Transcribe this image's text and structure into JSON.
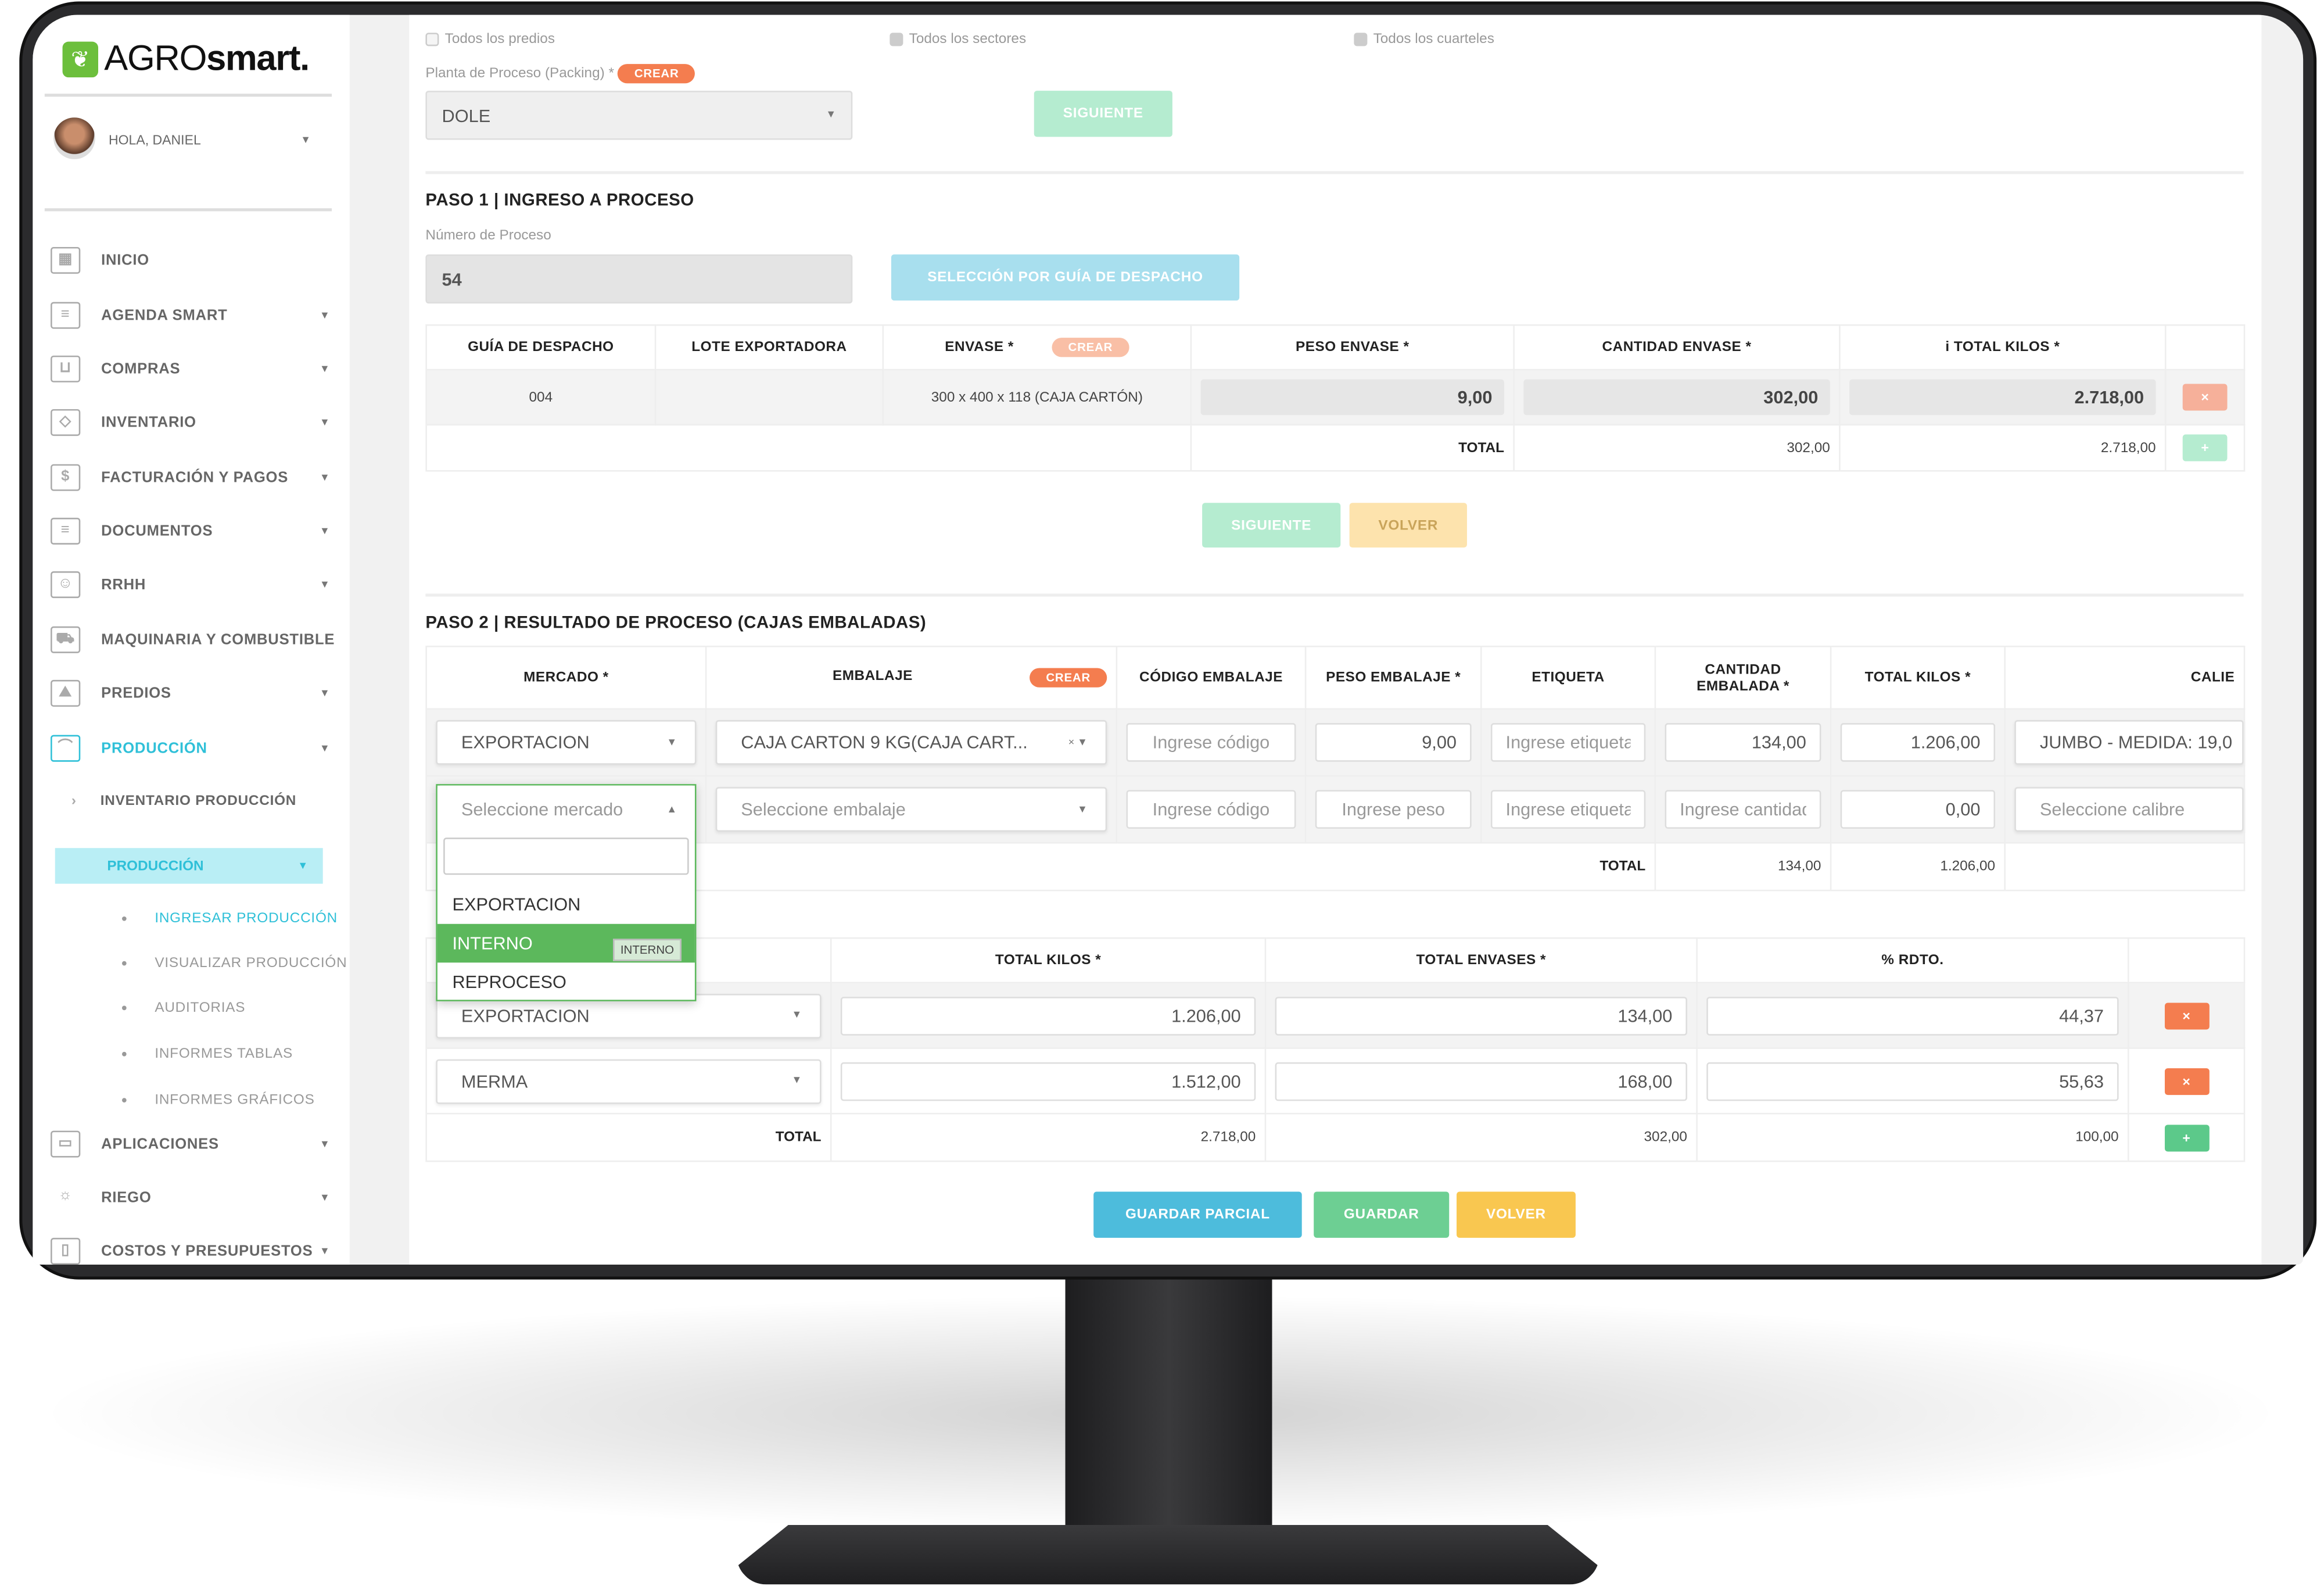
{
  "app": {
    "brand_light": "AGRO",
    "brand_bold": "smart.",
    "user_greeting": "HOLA, DANIEL"
  },
  "sidebar": {
    "items": [
      {
        "label": "INICIO",
        "icon": "dashboard-icon"
      },
      {
        "label": "AGENDA SMART",
        "icon": "agenda-icon"
      },
      {
        "label": "COMPRAS",
        "icon": "cart-icon"
      },
      {
        "label": "INVENTARIO",
        "icon": "tag-icon"
      },
      {
        "label": "FACTURACIÓN Y PAGOS",
        "icon": "billing-icon"
      },
      {
        "label": "DOCUMENTOS",
        "icon": "document-icon"
      },
      {
        "label": "RRHH",
        "icon": "id-card-icon"
      },
      {
        "label": "MAQUINARIA Y COMBUSTIBLE",
        "icon": "truck-icon"
      },
      {
        "label": "PREDIOS",
        "icon": "landscape-icon"
      },
      {
        "label": "PRODUCCIÓN",
        "icon": "nodes-icon",
        "active": true
      },
      {
        "label": "APLICACIONES",
        "icon": "calendar-icon"
      },
      {
        "label": "RIEGO",
        "icon": "sun-icon"
      },
      {
        "label": "COSTOS Y PRESUPUESTOS",
        "icon": "budget-icon"
      }
    ],
    "produccion": {
      "inventario": "INVENTARIO PRODUCCIÓN",
      "group": "PRODUCCIÓN",
      "subitems": [
        "INGRESAR PRODUCCIÓN",
        "VISUALIZAR PRODUCCIÓN",
        "AUDITORIAS",
        "INFORMES TABLAS",
        "INFORMES GRÁFICOS"
      ]
    }
  },
  "filters": {
    "predios": "Todos los predios",
    "sectores": "Todos los sectores",
    "cuarteles": "Todos los cuarteles",
    "planta_label": "Planta de Proceso (Packing) *",
    "crear": "CREAR",
    "planta_value": "DOLE",
    "siguiente": "SIGUIENTE"
  },
  "paso1": {
    "title": "PASO 1 | INGRESO A PROCESO",
    "numero_label": "Número de Proceso",
    "numero_value": "54",
    "guia_btn": "SELECCIÓN POR GUÍA DE DESPACHO",
    "headers": [
      "GUÍA DE DESPACHO",
      "LOTE EXPORTADORA",
      "ENVASE *",
      "PESO ENVASE *",
      "CANTIDAD ENVASE *",
      "TOTAL KILOS *"
    ],
    "crear": "CREAR",
    "info_icon": "i",
    "row": {
      "guia": "004",
      "lote": "",
      "envase": "300 x 400 x 118 (CAJA CARTÓN)",
      "peso": "9,00",
      "cantidad": "302,00",
      "total": "2.718,00"
    },
    "total_label": "TOTAL",
    "total_cantidad": "302,00",
    "total_kilos": "2.718,00",
    "siguiente": "SIGUIENTE",
    "volver": "VOLVER",
    "remove": "×",
    "add": "+"
  },
  "paso2": {
    "title": "PASO 2 | RESULTADO DE PROCESO (CAJAS EMBALADAS)",
    "headers": [
      "MERCADO *",
      "EMBALAJE",
      "CÓDIGO EMBALAJE",
      "PESO EMBALAJE *",
      "ETIQUETA",
      "CANTIDAD EMBALADA *",
      "TOTAL KILOS *",
      "CALIE"
    ],
    "crear": "CREAR",
    "row1": {
      "mercado": "EXPORTACION",
      "embalaje": "CAJA CARTON 9 KG(CAJA CART...",
      "codigo_ph": "Ingrese código",
      "peso": "9,00",
      "etiqueta_ph": "Ingrese etiqueta",
      "cantidad": "134,00",
      "total": "1.206,00",
      "calibre": "JUMBO - MEDIDA: 19,0"
    },
    "row2": {
      "mercado_ph": "Seleccione mercado",
      "embalaje_ph": "Seleccione embalaje",
      "codigo_ph": "Ingrese código",
      "peso_ph": "Ingrese peso",
      "etiqueta_ph": "Ingrese etiqueta",
      "cantidad_ph": "Ingrese cantidad",
      "total": "0,00",
      "calibre_ph": "Seleccione calibre"
    },
    "total_label": "TOTAL",
    "total_cantidad": "134,00",
    "total_kilos": "1.206,00",
    "dropdown": {
      "options": [
        "EXPORTACION",
        "INTERNO",
        "REPROCESO"
      ],
      "highlighted": "INTERNO",
      "tooltip": "INTERNO"
    }
  },
  "resumen": {
    "headers": [
      "TOTAL KILOS *",
      "TOTAL ENVASES *",
      "% RDTO."
    ],
    "rows": [
      {
        "mercado": "EXPORTACION",
        "kilos": "1.206,00",
        "envases": "134,00",
        "rdto": "44,37"
      },
      {
        "mercado": "MERMA",
        "kilos": "1.512,00",
        "envases": "168,00",
        "rdto": "55,63"
      }
    ],
    "total_label": "TOTAL",
    "total_kilos": "2.718,00",
    "total_envases": "302,00",
    "total_rdto": "100,00",
    "remove": "×",
    "add": "+"
  },
  "actions": {
    "guardar_parcial": "GUARDAR PARCIAL",
    "guardar": "GUARDAR",
    "volver": "VOLVER"
  },
  "colors": {
    "accent": "#2fc0d8",
    "orange": "#f47d4f",
    "green": "#6dcf93",
    "blue": "#4dbcdc",
    "yellow": "#f9c750",
    "dropdown_highlight": "#5cb85c"
  }
}
